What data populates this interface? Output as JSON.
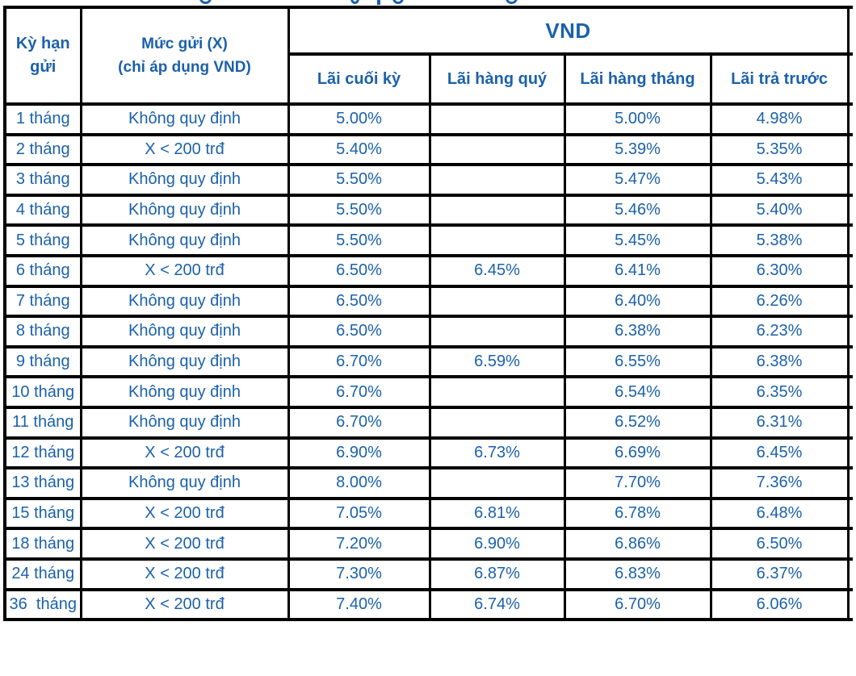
{
  "colors": {
    "text_blue": "#1b61ab",
    "border": "#000000"
  },
  "table": {
    "term_header": "Kỳ hạn gửi",
    "amount_header_line1": "Mức gửi (X)",
    "amount_header_line2": "(chỉ áp dụng VND)",
    "currency_group": "VND",
    "sub_headers": [
      "Lãi cuối kỳ",
      "Lãi hàng quý",
      "Lãi hàng tháng",
      "Lãi trả trước"
    ],
    "rows": [
      {
        "term": "1 tháng",
        "amount": "Không quy định",
        "end_of_term": "5.00%",
        "quarterly": "",
        "monthly": "5.00%",
        "prepaid": "4.98%"
      },
      {
        "term": "2 tháng",
        "amount": "X < 200 trđ",
        "end_of_term": "5.40%",
        "quarterly": "",
        "monthly": "5.39%",
        "prepaid": "5.35%"
      },
      {
        "term": "3 tháng",
        "amount": "Không quy định",
        "end_of_term": "5.50%",
        "quarterly": "",
        "monthly": "5.47%",
        "prepaid": "5.43%"
      },
      {
        "term": "4 tháng",
        "amount": "Không quy định",
        "end_of_term": "5.50%",
        "quarterly": "",
        "monthly": "5.46%",
        "prepaid": "5.40%"
      },
      {
        "term": "5 tháng",
        "amount": "Không quy định",
        "end_of_term": "5.50%",
        "quarterly": "",
        "monthly": "5.45%",
        "prepaid": "5.38%"
      },
      {
        "term": "6 tháng",
        "amount": "X < 200 trđ",
        "end_of_term": "6.50%",
        "quarterly": "6.45%",
        "monthly": "6.41%",
        "prepaid": "6.30%"
      },
      {
        "term": "7 tháng",
        "amount": "Không quy định",
        "end_of_term": "6.50%",
        "quarterly": "",
        "monthly": "6.40%",
        "prepaid": "6.26%"
      },
      {
        "term": "8 tháng",
        "amount": "Không quy định",
        "end_of_term": "6.50%",
        "quarterly": "",
        "monthly": "6.38%",
        "prepaid": "6.23%"
      },
      {
        "term": "9 tháng",
        "amount": "Không quy định",
        "end_of_term": "6.70%",
        "quarterly": "6.59%",
        "monthly": "6.55%",
        "prepaid": "6.38%"
      },
      {
        "term": "10 tháng",
        "amount": "Không quy định",
        "end_of_term": "6.70%",
        "quarterly": "",
        "monthly": "6.54%",
        "prepaid": "6.35%"
      },
      {
        "term": "11 tháng",
        "amount": "Không quy định",
        "end_of_term": "6.70%",
        "quarterly": "",
        "monthly": "6.52%",
        "prepaid": "6.31%"
      },
      {
        "term": "12 tháng",
        "amount": "X < 200 trđ",
        "end_of_term": "6.90%",
        "quarterly": "6.73%",
        "monthly": "6.69%",
        "prepaid": "6.45%"
      },
      {
        "term": "13 tháng",
        "amount": "Không quy định",
        "end_of_term": "8.00%",
        "quarterly": "",
        "monthly": "7.70%",
        "prepaid": "7.36%"
      },
      {
        "term": "15 tháng",
        "amount": "X < 200 trđ",
        "end_of_term": "7.05%",
        "quarterly": "6.81%",
        "monthly": "6.78%",
        "prepaid": "6.48%"
      },
      {
        "term": "18 tháng",
        "amount": "X < 200 trđ",
        "end_of_term": "7.20%",
        "quarterly": "6.90%",
        "monthly": "6.86%",
        "prepaid": "6.50%"
      },
      {
        "term": "24 tháng",
        "amount": "X < 200 trđ",
        "end_of_term": "7.30%",
        "quarterly": "6.87%",
        "monthly": "6.83%",
        "prepaid": "6.37%"
      },
      {
        "term": "36  tháng",
        "amount": "X < 200 trđ",
        "end_of_term": "7.40%",
        "quarterly": "6.74%",
        "monthly": "6.70%",
        "prepaid": "6.06%"
      }
    ]
  }
}
